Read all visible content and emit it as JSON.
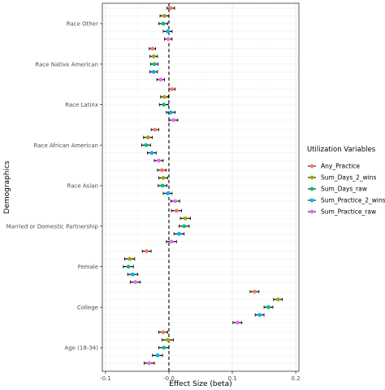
{
  "chart_data": {
    "type": "scatter",
    "subtype": "coefficient plot with horizontal error bars",
    "xlabel": "Effect Size (beta)",
    "ylabel": "Demographics",
    "xlim": [
      -0.105,
      0.205
    ],
    "x_ticks": [
      -0.1,
      -0.0,
      0.1,
      0.2
    ],
    "x_tick_labels": [
      "-0.1",
      "-0.0",
      "0.1",
      "0.2"
    ],
    "reference_line": {
      "x": 0,
      "style": "dashed"
    },
    "grid": true,
    "legend": {
      "title": "Utilization Variables",
      "placement": "right"
    },
    "categories": [
      "Race Other",
      "Race Native American",
      "Race Latinx",
      "Race African American",
      "Race Asian",
      "Married or Domestic Partnership",
      "Female",
      "College",
      "Age (18-34)"
    ],
    "series": [
      {
        "name": "Any_Practice",
        "color": "#F8766D",
        "values": [
          0.003,
          -0.026,
          0.005,
          -0.022,
          -0.011,
          0.012,
          -0.035,
          0.135,
          -0.009
        ],
        "err": [
          0.006,
          0.005,
          0.005,
          0.006,
          0.007,
          0.008,
          0.007,
          0.007,
          0.007
        ]
      },
      {
        "name": "Sum_Days_2_wins",
        "color": "#A3A500",
        "values": [
          -0.007,
          -0.024,
          -0.007,
          -0.033,
          -0.009,
          0.026,
          -0.062,
          0.172,
          -0.002
        ],
        "err": [
          0.007,
          0.006,
          0.006,
          0.007,
          0.007,
          0.008,
          0.008,
          0.007,
          0.009
        ]
      },
      {
        "name": "Sum_Days_raw",
        "color": "#00BF7D",
        "values": [
          -0.009,
          -0.023,
          -0.008,
          -0.036,
          -0.01,
          0.024,
          -0.064,
          0.157,
          -0.008
        ],
        "err": [
          0.007,
          0.006,
          0.007,
          0.007,
          0.007,
          0.008,
          0.008,
          0.007,
          0.008
        ]
      },
      {
        "name": "Sum_Practice_2_wins",
        "color": "#00B0F6",
        "values": [
          -0.002,
          -0.024,
          0.003,
          -0.027,
          -0.002,
          0.016,
          -0.057,
          0.143,
          -0.018
        ],
        "err": [
          0.007,
          0.006,
          0.007,
          0.007,
          0.007,
          0.008,
          0.008,
          0.007,
          0.008
        ]
      },
      {
        "name": "Sum_Practice_raw",
        "color": "#E76BF3",
        "values": [
          -0.001,
          -0.013,
          0.007,
          -0.016,
          0.01,
          0.004,
          -0.053,
          0.108,
          -0.031
        ],
        "err": [
          0.006,
          0.006,
          0.007,
          0.007,
          0.007,
          0.008,
          0.008,
          0.007,
          0.008
        ]
      }
    ]
  }
}
